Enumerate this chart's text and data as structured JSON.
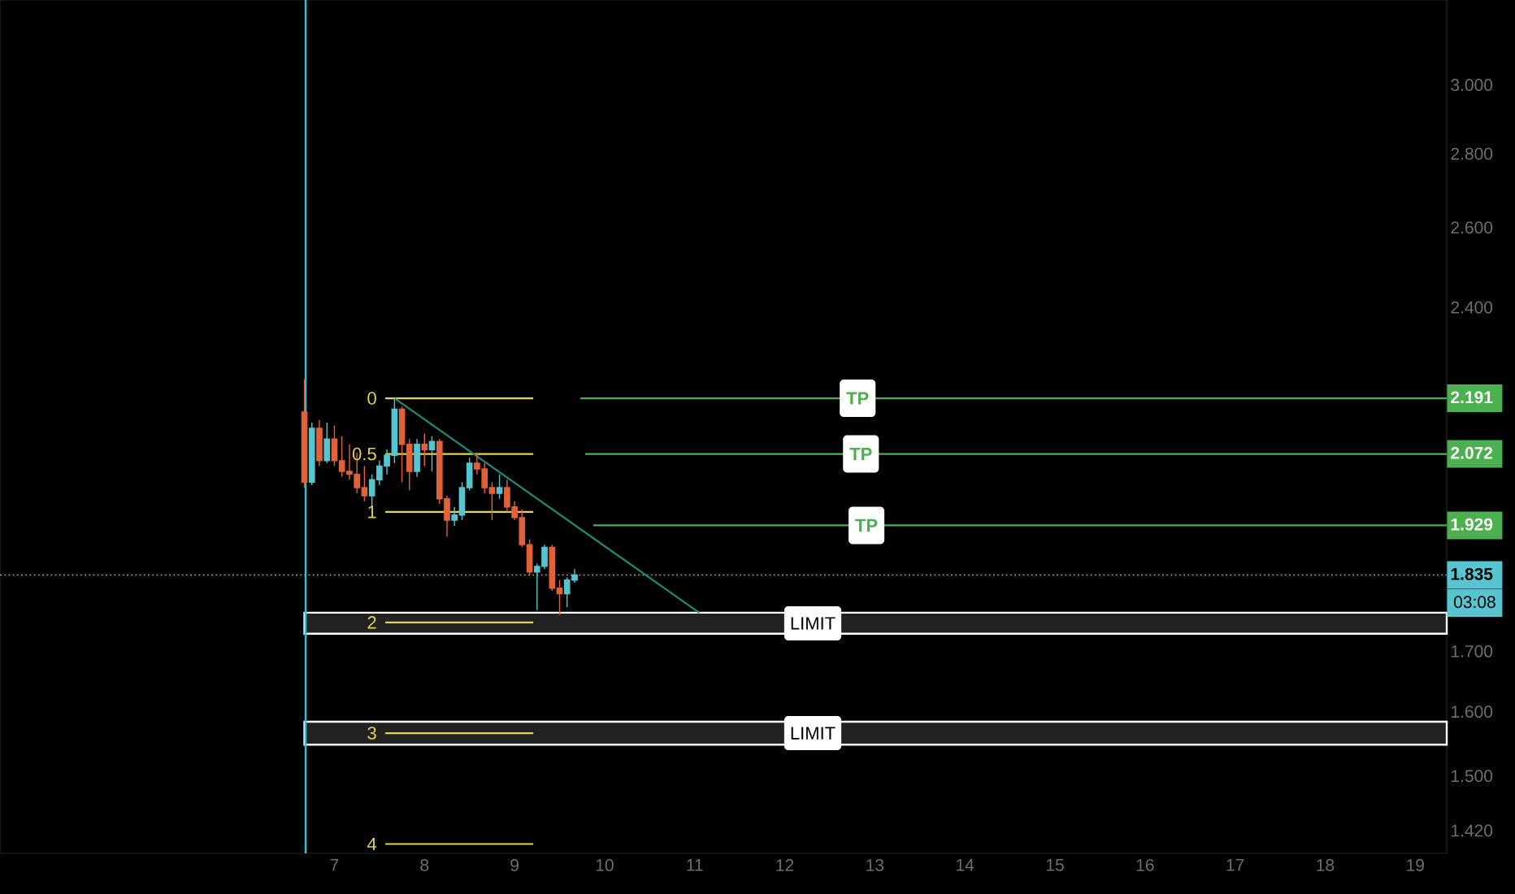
{
  "chart_data": {
    "type": "candlestick",
    "x": [
      6.667,
      6.75,
      6.833,
      6.917,
      7.0,
      7.083,
      7.167,
      7.25,
      7.333,
      7.417,
      7.5,
      7.583,
      7.667,
      7.75,
      7.833,
      7.917,
      8.0,
      8.083,
      8.167,
      8.25,
      8.333,
      8.417,
      8.5,
      8.583,
      8.667,
      8.75,
      8.833,
      8.917,
      9.0,
      9.083,
      9.167,
      9.25,
      9.333,
      9.417,
      9.5,
      9.583,
      9.667
    ],
    "ohlc": [
      [
        2.161,
        2.233,
        2.003,
        2.014
      ],
      [
        2.014,
        2.138,
        2.008,
        2.126
      ],
      [
        2.126,
        2.144,
        2.047,
        2.058
      ],
      [
        2.058,
        2.138,
        2.053,
        2.103
      ],
      [
        2.103,
        2.132,
        2.047,
        2.058
      ],
      [
        2.058,
        2.109,
        2.025,
        2.036
      ],
      [
        2.036,
        2.092,
        2.019,
        2.03
      ],
      [
        2.03,
        2.075,
        1.992,
        2.003
      ],
      [
        2.003,
        2.047,
        1.976,
        1.987
      ],
      [
        1.987,
        2.03,
        1.965,
        2.019
      ],
      [
        2.019,
        2.058,
        2.008,
        2.047
      ],
      [
        2.047,
        2.081,
        2.03,
        2.069
      ],
      [
        2.069,
        2.191,
        2.053,
        2.167
      ],
      [
        2.167,
        2.173,
        2.014,
        2.092
      ],
      [
        2.092,
        2.103,
        1.998,
        2.036
      ],
      [
        2.036,
        2.103,
        2.025,
        2.092
      ],
      [
        2.092,
        2.115,
        2.047,
        2.081
      ],
      [
        2.081,
        2.109,
        2.036,
        2.098
      ],
      [
        2.098,
        2.103,
        1.971,
        1.981
      ],
      [
        1.981,
        1.987,
        1.907,
        1.939
      ],
      [
        1.939,
        1.965,
        1.928,
        1.949
      ],
      [
        1.949,
        2.014,
        1.939,
        2.003
      ],
      [
        2.003,
        2.064,
        1.998,
        2.053
      ],
      [
        2.053,
        2.075,
        2.03,
        2.041
      ],
      [
        2.041,
        2.053,
        1.992,
        2.003
      ],
      [
        2.003,
        2.014,
        1.939,
        1.992
      ],
      [
        1.992,
        2.03,
        1.981,
        2.003
      ],
      [
        2.003,
        2.019,
        1.955,
        1.965
      ],
      [
        1.965,
        1.976,
        1.939,
        1.944
      ],
      [
        1.944,
        1.96,
        1.887,
        1.892
      ],
      [
        1.892,
        1.902,
        1.836,
        1.841
      ],
      [
        1.841,
        1.856,
        1.772,
        1.851
      ],
      [
        1.851,
        1.892,
        1.846,
        1.887
      ],
      [
        1.887,
        1.892,
        1.806,
        1.811
      ],
      [
        1.811,
        1.826,
        1.763,
        1.801
      ],
      [
        1.801,
        1.831,
        1.777,
        1.826
      ],
      [
        1.826,
        1.846,
        1.821,
        1.835
      ]
    ],
    "colors": [
      "#e0623a",
      "#56c5d0",
      "#e0623a",
      "#56c5d0",
      "#e0623a",
      "#e0623a",
      "#e0623a",
      "#e0623a",
      "#e0623a",
      "#56c5d0",
      "#56c5d0",
      "#56c5d0",
      "#56c5d0",
      "#e0623a",
      "#e0623a",
      "#56c5d0",
      "#e0623a",
      "#56c5d0",
      "#e0623a",
      "#e0623a",
      "#56c5d0",
      "#56c5d0",
      "#56c5d0",
      "#e0623a",
      "#e0623a",
      "#e0623a",
      "#56c5d0",
      "#e0623a",
      "#e0623a",
      "#e0623a",
      "#e0623a",
      "#56c5d0",
      "#56c5d0",
      "#e0623a",
      "#e0623a",
      "#56c5d0",
      "#56c5d0"
    ],
    "series": [
      {
        "type": "line",
        "name": "0",
        "color": "#e3d44f",
        "x": [
          7.565,
          9.208
        ],
        "values": [
          2.191,
          2.191
        ]
      },
      {
        "type": "line",
        "name": "0.5",
        "color": "#e3d44f",
        "x": [
          7.565,
          9.208
        ],
        "values": [
          2.072,
          2.072
        ]
      },
      {
        "type": "line",
        "name": "1",
        "color": "#e3d44f",
        "x": [
          7.565,
          9.208
        ],
        "values": [
          1.955,
          1.955
        ]
      },
      {
        "type": "line",
        "name": "2",
        "color": "#e3d44f",
        "x": [
          7.565,
          9.208
        ],
        "values": [
          1.75,
          1.75
        ]
      },
      {
        "type": "line",
        "name": "3",
        "color": "#e3d44f",
        "x": [
          7.565,
          9.208
        ],
        "values": [
          1.566,
          1.566
        ]
      },
      {
        "type": "line",
        "name": "4",
        "color": "#e3d44f",
        "x": [
          7.565,
          9.208
        ],
        "values": [
          1.401,
          1.401
        ]
      },
      {
        "type": "line",
        "color": "#1f8a7a",
        "x": [
          7.667,
          11.05
        ],
        "values": [
          2.191,
          1.767
        ]
      },
      {
        "type": "line",
        "name": "TP",
        "color": "#4caf50",
        "x": [
          9.731,
          19.35
        ],
        "values": [
          2.191,
          2.191
        ]
      },
      {
        "type": "line",
        "name": "TP",
        "color": "#4caf50",
        "x": [
          9.785,
          19.35
        ],
        "values": [
          2.072,
          2.072
        ]
      },
      {
        "type": "line",
        "name": "TP",
        "color": "#4caf50",
        "x": [
          9.875,
          19.35
        ],
        "values": [
          1.929,
          1.929
        ]
      }
    ],
    "xlim": [
      3.287,
      19.35
    ],
    "xticks": [
      7,
      8,
      9,
      10,
      11,
      12,
      13,
      14,
      15,
      16,
      17,
      18,
      19
    ],
    "ylim": [
      1.388,
      3.267
    ],
    "log": true,
    "yticks": [
      {
        "value": 3,
        "label": "3.000"
      },
      {
        "value": 2.8,
        "label": "2.800"
      },
      {
        "value": 2.6,
        "label": "2.600"
      },
      {
        "value": 2.4,
        "label": "2.400"
      },
      {
        "value": 2.191,
        "label": "2.191"
      },
      {
        "value": 2.072,
        "label": "2.072"
      },
      {
        "value": 1.929,
        "label": "1.929"
      },
      {
        "value": 1.835,
        "label": "1.835"
      },
      {
        "value": 1.7,
        "label": "1.700"
      },
      {
        "value": 1.6,
        "label": "1.600"
      },
      {
        "value": 1.5,
        "label": "1.500"
      },
      {
        "value": 1.42,
        "label": "1.420"
      }
    ],
    "ref_lines": [
      {
        "axis": "x",
        "value": 6.68,
        "color": "#26c6da"
      },
      {
        "axis": "y",
        "value": 1.835,
        "color": "#9aa0a6",
        "line_style": "dotted"
      }
    ],
    "bands": [
      {
        "axis": "y",
        "from": 1.73,
        "to": 1.767,
        "label": "LIMIT",
        "color": "#222222"
      },
      {
        "axis": "y",
        "from": 1.548,
        "to": 1.584,
        "label": "LIMIT",
        "color": "#222222"
      }
    ],
    "annotations": [
      "03:08"
    ]
  }
}
